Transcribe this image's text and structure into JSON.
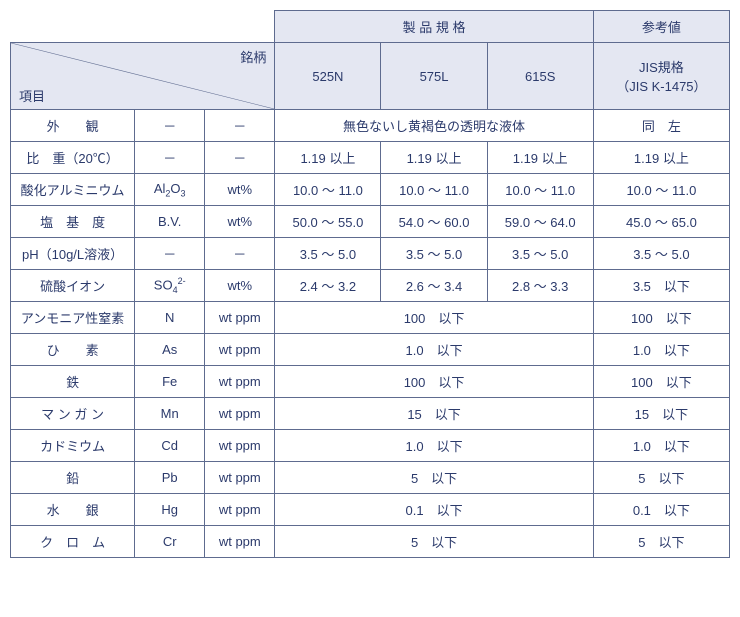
{
  "colors": {
    "border": "#5e6b8f",
    "header_bg": "#e4e7f2",
    "body_bg": "#ffffff",
    "text": "#2b3a6b"
  },
  "header": {
    "spec_group": "製 品 規 格",
    "ref_group": "参考値",
    "brand_label": "銘柄",
    "item_label": "項目",
    "cols": {
      "c1": "525N",
      "c2": "575L",
      "c3": "615S"
    },
    "jis": {
      "l1": "JIS規格",
      "l2": "（JIS K-1475）"
    }
  },
  "rows": {
    "r1": {
      "name": "外　　観",
      "sym": "－",
      "unit": "－",
      "merged": "無色ないし黄褐色の透明な液体",
      "jis": "同　左"
    },
    "r2": {
      "name": "比　重（20℃）",
      "sym": "－",
      "unit": "－",
      "c1": "1.19 以上",
      "c2": "1.19 以上",
      "c3": "1.19 以上",
      "jis": "1.19 以上"
    },
    "r3": {
      "name": "酸化アルミニウム",
      "sym_html": "Al<sub>2</sub>O<sub>3</sub>",
      "unit": "wt%",
      "c1": "10.0 ～ 11.0",
      "c2": "10.0 ～ 11.0",
      "c3": "10.0 ～ 11.0",
      "jis": "10.0 ～ 11.0"
    },
    "r4": {
      "name": "塩　基　度",
      "sym": "B.V.",
      "unit": "wt%",
      "c1": "50.0 ～ 55.0",
      "c2": "54.0 ～ 60.0",
      "c3": "59.0 ～ 64.0",
      "jis": "45.0 ～ 65.0"
    },
    "r5": {
      "name": "pH（10g/L溶液）",
      "sym": "－",
      "unit": "－",
      "c1": "3.5 ～ 5.0",
      "c2": "3.5 ～ 5.0",
      "c3": "3.5 ～ 5.0",
      "jis": "3.5 ～ 5.0"
    },
    "r6": {
      "name": "硫酸イオン",
      "sym_html": "SO<sub>4</sub><sup>2-</sup>",
      "unit": "wt%",
      "c1": "2.4 ～ 3.2",
      "c2": "2.6 ～ 3.4",
      "c3": "2.8 ～ 3.3",
      "jis": "3.5　以下"
    },
    "r7": {
      "name": "アンモニア性窒素",
      "sym": "N",
      "unit": "wt ppm",
      "merged": "100　以下",
      "jis": "100　以下"
    },
    "r8": {
      "name": "ひ　　素",
      "sym": "As",
      "unit": "wt ppm",
      "merged": "1.0　以下",
      "jis": "1.0　以下"
    },
    "r9": {
      "name": "鉄",
      "sym": "Fe",
      "unit": "wt ppm",
      "merged": "100　以下",
      "jis": "100　以下"
    },
    "r10": {
      "name": "マ ン ガ ン",
      "sym": "Mn",
      "unit": "wt ppm",
      "merged": "15　以下",
      "jis": "15　以下"
    },
    "r11": {
      "name": "カドミウム",
      "sym": "Cd",
      "unit": "wt ppm",
      "merged": "1.0　以下",
      "jis": "1.0　以下"
    },
    "r12": {
      "name": "鉛",
      "sym": "Pb",
      "unit": "wt ppm",
      "merged": "5　以下",
      "jis": "5　以下"
    },
    "r13": {
      "name": "水　　銀",
      "sym": "Hg",
      "unit": "wt ppm",
      "merged": "0.1　以下",
      "jis": "0.1　以下"
    },
    "r14": {
      "name": "ク　ロ　ム",
      "sym": "Cr",
      "unit": "wt ppm",
      "merged": "5　以下",
      "jis": "5　以下"
    }
  },
  "col_widths": {
    "name": 124,
    "sym": 70,
    "unit": 70,
    "spec": 106,
    "jis": 136
  }
}
